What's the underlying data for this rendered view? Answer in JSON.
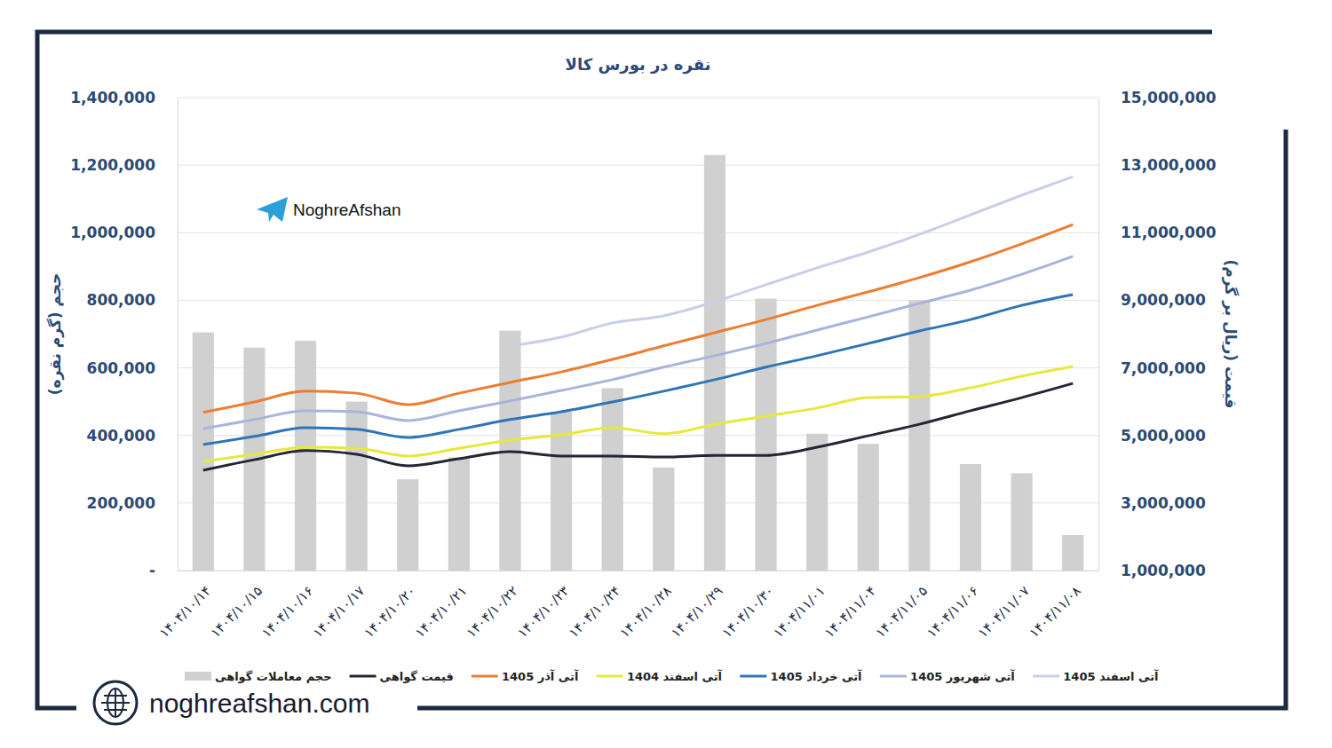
{
  "chart_data": {
    "type": "combo",
    "title": "نقره در بورس کالا",
    "y_label": "حجم (گرم نقره)",
    "y2_label": "قیمت (ریال بر گرم)",
    "annotations": [
      "NoghreAfshan",
      "noghreafshan.com"
    ],
    "categories": [
      "۱۴۰۴/۱۰/۱۴",
      "۱۴۰۴/۱۰/۱۵",
      "۱۴۰۴/۱۰/۱۶",
      "۱۴۰۴/۱۰/۱۷",
      "۱۴۰۴/۱۰/۲۰",
      "۱۴۰۴/۱۰/۲۱",
      "۱۴۰۴/۱۰/۲۲",
      "۱۴۰۴/۱۰/۲۳",
      "۱۴۰۴/۱۰/۲۴",
      "۱۴۰۴/۱۰/۲۸",
      "۱۴۰۴/۱۰/۲۹",
      "۱۴۰۴/۱۰/۳۰",
      "۱۴۰۴/۱۱/۰۱",
      "۱۴۰۴/۱۱/۰۴",
      "۱۴۰۴/۱۱/۰۵",
      "۱۴۰۴/۱۱/۰۶",
      "۱۴۰۴/۱۱/۰۷",
      "۱۴۰۴/۱۱/۰۸"
    ],
    "series": [
      {
        "name": "حجم معاملات گواهی",
        "type": "bar",
        "color": "#d0d0d0",
        "values": [
          705000,
          660000,
          680000,
          500000,
          270000,
          335000,
          710000,
          470000,
          540000,
          305000,
          1230000,
          805000,
          405000,
          375000,
          800000,
          315000,
          288000,
          105000
        ]
      },
      {
        "name": "قیمت گواهی",
        "type": "line",
        "axis": "y2",
        "color": "#222733",
        "values": [
          3970000,
          4280000,
          4550000,
          4440000,
          4100000,
          4310000,
          4520000,
          4390000,
          4390000,
          4360000,
          4410000,
          4410000,
          4650000,
          4990000,
          5330000,
          5730000,
          6120000,
          6540000
        ]
      },
      {
        "name": "آتی آذر 1405",
        "type": "line",
        "axis": "y2",
        "color": "#ed7d31",
        "values": [
          5680000,
          5990000,
          6310000,
          6250000,
          5910000,
          6250000,
          6570000,
          6880000,
          7250000,
          7650000,
          8040000,
          8430000,
          8850000,
          9250000,
          9670000,
          10140000,
          10670000,
          11240000
        ]
      },
      {
        "name": "آتی اسفند 1404",
        "type": "line",
        "axis": "y2",
        "color": "#e8e83c",
        "values": [
          4230000,
          4440000,
          4650000,
          4620000,
          4390000,
          4620000,
          4860000,
          5020000,
          5230000,
          5050000,
          5330000,
          5570000,
          5810000,
          6120000,
          6150000,
          6410000,
          6750000,
          7040000
        ]
      },
      {
        "name": "آتی خرداد 1405",
        "type": "line",
        "axis": "y2",
        "color": "#2e75b6",
        "values": [
          4730000,
          4970000,
          5230000,
          5180000,
          4940000,
          5180000,
          5470000,
          5700000,
          5990000,
          6310000,
          6650000,
          7020000,
          7360000,
          7720000,
          8090000,
          8430000,
          8850000,
          9170000
        ]
      },
      {
        "name": "آتی شهریور 1405",
        "type": "line",
        "axis": "y2",
        "color": "#a9b3dc",
        "values": [
          5200000,
          5470000,
          5730000,
          5700000,
          5440000,
          5730000,
          6020000,
          6330000,
          6650000,
          7020000,
          7360000,
          7720000,
          8120000,
          8510000,
          8910000,
          9300000,
          9770000,
          10300000
        ]
      },
      {
        "name": "آتی اسفند 1405",
        "type": "line",
        "axis": "y2",
        "color": "#c9cfe8",
        "values": [
          null,
          null,
          null,
          null,
          null,
          null,
          7650000,
          7910000,
          8330000,
          8540000,
          8960000,
          9460000,
          9960000,
          10430000,
          10950000,
          11530000,
          12110000,
          12660000
        ]
      }
    ],
    "ylim": [
      0,
      1400000
    ],
    "yticks": [
      {
        "value": 0,
        "label": "-"
      },
      {
        "value": 200000,
        "label": "200,000"
      },
      {
        "value": 400000,
        "label": "400,000"
      },
      {
        "value": 600000,
        "label": "600,000"
      },
      {
        "value": 800000,
        "label": "800,000"
      },
      {
        "value": 1000000,
        "label": "1,000,000"
      },
      {
        "value": 1200000,
        "label": "1,200,000"
      },
      {
        "value": 1400000,
        "label": "1,400,000"
      }
    ],
    "y2lim": [
      1000000,
      15000000
    ],
    "y2ticks": [
      {
        "value": 1000000,
        "label": "1,000,000"
      },
      {
        "value": 3000000,
        "label": "3,000,000"
      },
      {
        "value": 5000000,
        "label": "5,000,000"
      },
      {
        "value": 7000000,
        "label": "7,000,000"
      },
      {
        "value": 9000000,
        "label": "9,000,000"
      },
      {
        "value": 11000000,
        "label": "11,000,000"
      },
      {
        "value": 13000000,
        "label": "13,000,000"
      },
      {
        "value": 15000000,
        "label": "15,000,000"
      }
    ],
    "grid": true,
    "legend": "bottom"
  }
}
